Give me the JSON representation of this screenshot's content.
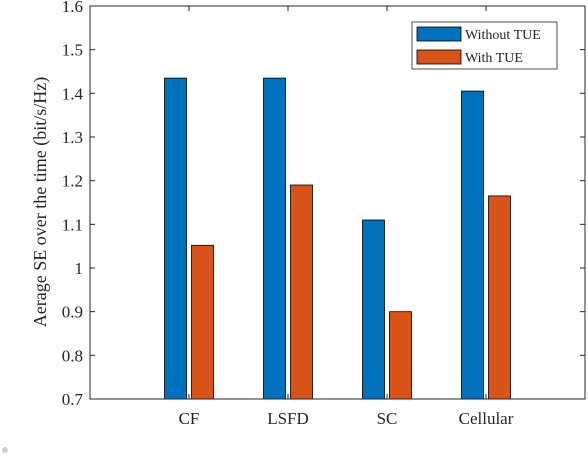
{
  "chart_data": {
    "type": "bar",
    "categories": [
      "CF",
      "LSFD",
      "SC",
      "Cellular"
    ],
    "series": [
      {
        "name": "Without TUE",
        "values": [
          1.435,
          1.435,
          1.11,
          1.405
        ],
        "color": "#0072BD"
      },
      {
        "name": "With TUE",
        "values": [
          1.052,
          1.19,
          0.9,
          1.165
        ],
        "color": "#D95319"
      }
    ],
    "ylabel": "Aerage SE over the time (bit/s/Hz)",
    "xlabel": "",
    "ylim": [
      0.7,
      1.6
    ],
    "yticks": [
      0.7,
      0.8,
      0.9,
      1,
      1.1,
      1.2,
      1.3,
      1.4,
      1.5,
      1.6
    ],
    "ytick_labels": [
      "0.7",
      "0.8",
      "0.9",
      "1",
      "1.1",
      "1.2",
      "1.3",
      "1.4",
      "1.5",
      "1.6"
    ],
    "legend_position": "top-right",
    "grid": false
  }
}
